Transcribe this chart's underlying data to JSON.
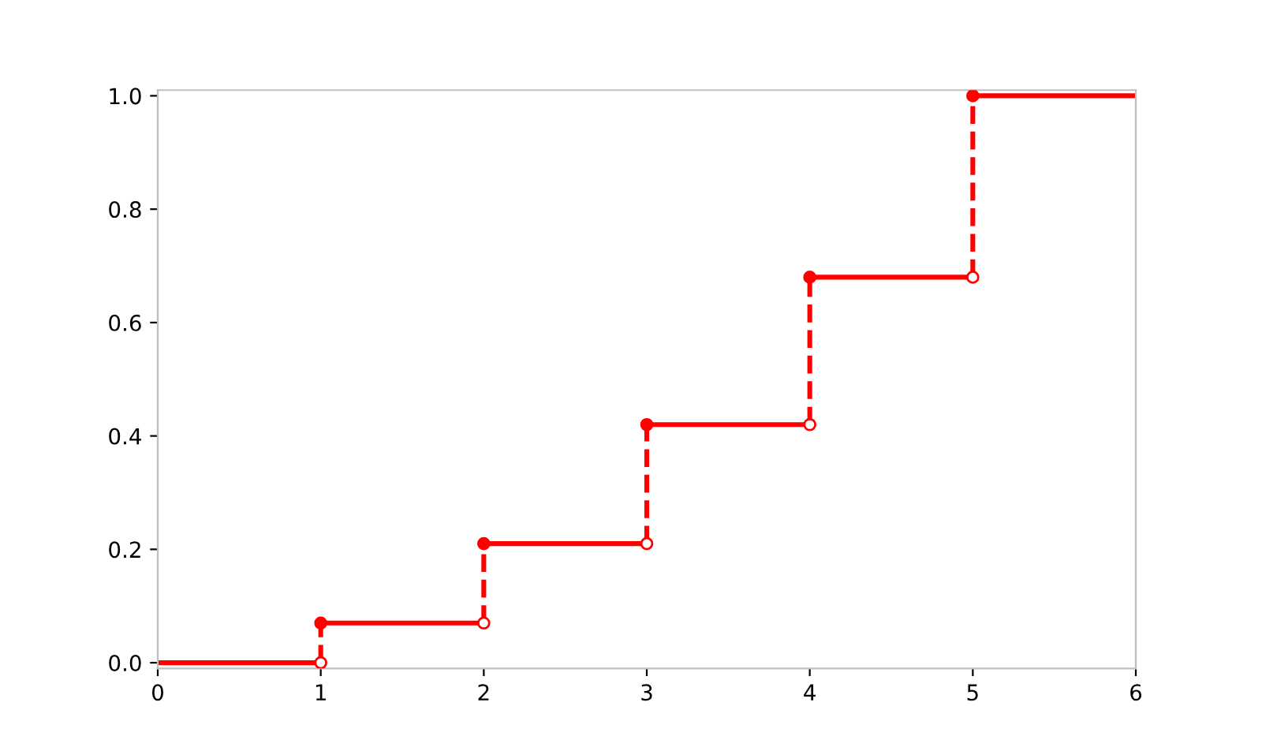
{
  "chart_data": {
    "type": "step",
    "x": [
      0,
      1,
      2,
      3,
      4,
      5,
      6
    ],
    "series": [
      {
        "color": "#ff0000",
        "values": [
          0,
          0.07,
          0.21,
          0.42,
          0.68,
          1.0,
          1.0
        ]
      },
      {
        "type": "scatter",
        "x": [
          1,
          2,
          3,
          4,
          5
        ],
        "color": "#ffffff",
        "values": [
          0,
          0.07,
          0.21,
          0.42,
          0.68
        ]
      }
    ],
    "marker": "circle",
    "line_style": "solid",
    "grid": false,
    "legend": false,
    "xlim": [
      0,
      6
    ],
    "ylim": [
      -0.01,
      1.01
    ],
    "xticks": [
      0,
      1,
      2,
      3,
      4,
      5,
      6
    ],
    "yticks": [
      {
        "value": 0,
        "label": "0.0"
      },
      {
        "value": 0.2,
        "label": "0.2"
      },
      {
        "value": 0.4,
        "label": "0.4"
      },
      {
        "value": 0.6,
        "label": "0.6"
      },
      {
        "value": 0.8,
        "label": "0.8"
      },
      {
        "value": 1.0,
        "label": "1.0"
      }
    ]
  }
}
